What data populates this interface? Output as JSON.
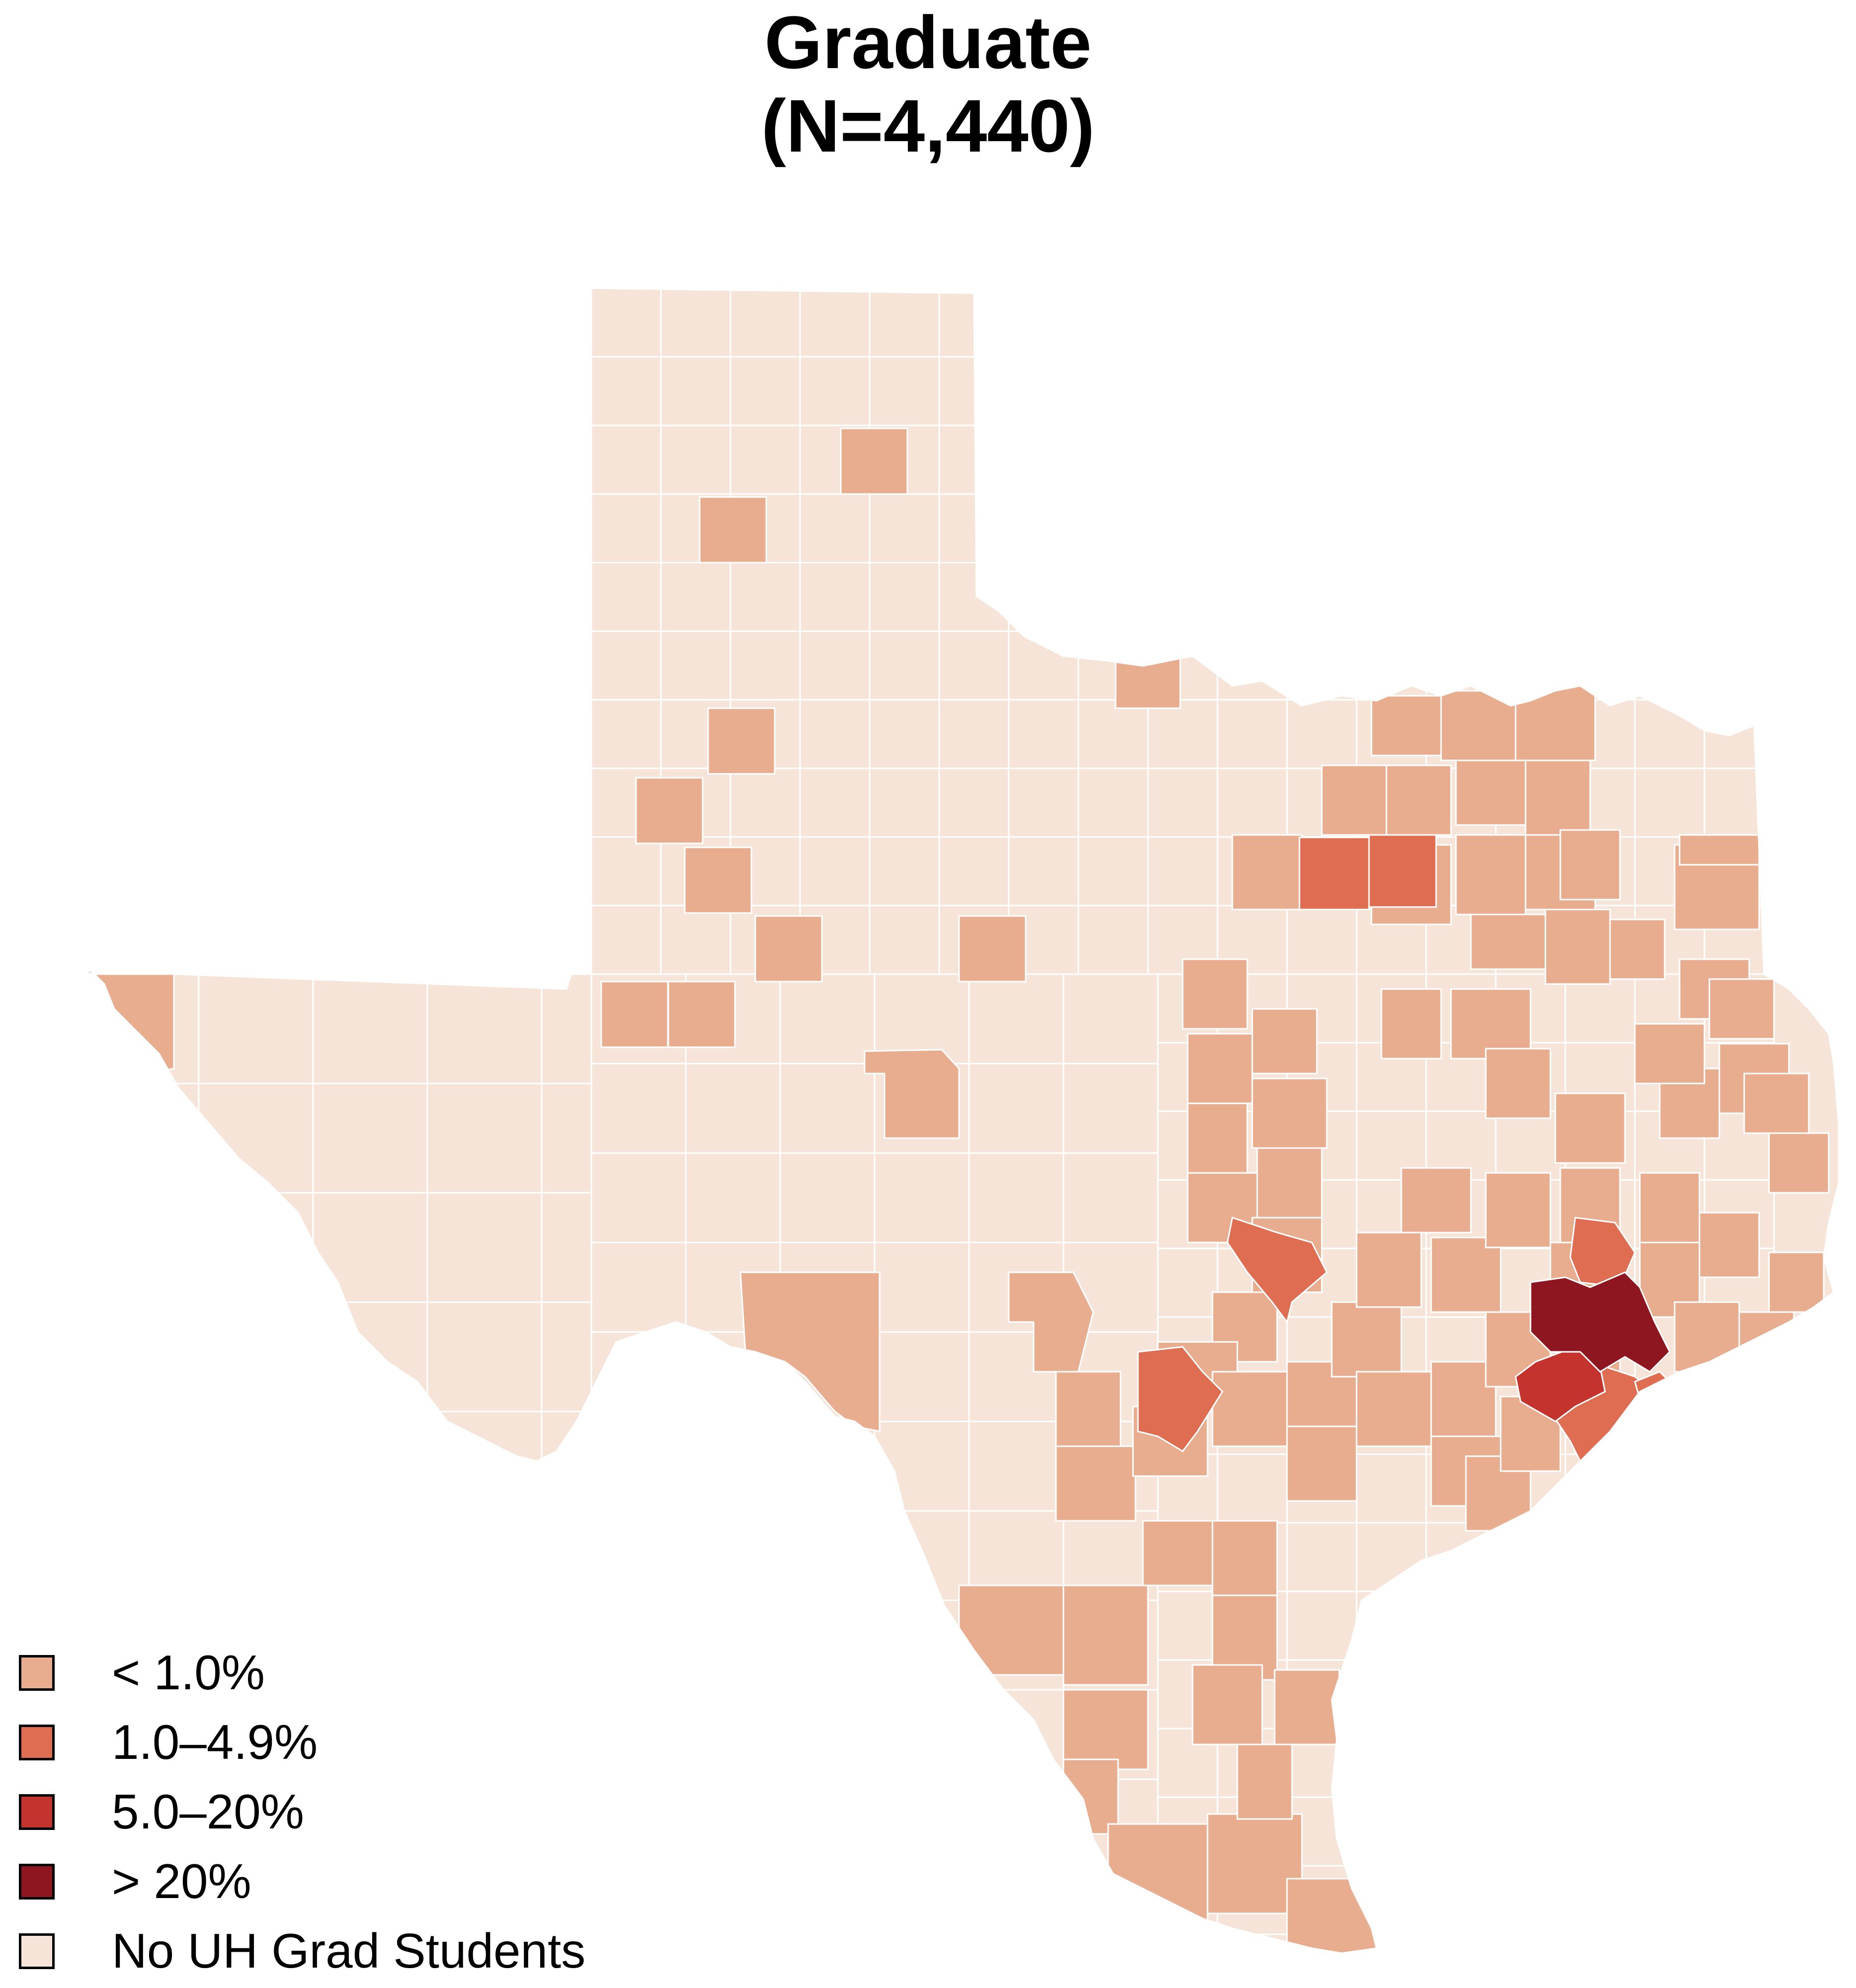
{
  "title": {
    "line1": "Graduate",
    "line2": "(N=4,440)"
  },
  "colors": {
    "none": "#f6e4d9",
    "lt1": "#e8ad8f",
    "p1_4_9": "#de6d52",
    "p5_20": "#c4332d",
    "gt20": "#8e1620",
    "border": "#ffffff",
    "outline": "#000000"
  },
  "legend": [
    {
      "key": "lt1",
      "label": "< 1.0%",
      "color": "#e8ad8f"
    },
    {
      "key": "p1_4_9",
      "label": "1.0–4.9%",
      "color": "#de6d52"
    },
    {
      "key": "p5_20",
      "label": "5.0–20%",
      "color": "#c4332d"
    },
    {
      "key": "gt20",
      "label": "> 20%",
      "color": "#8e1620"
    },
    {
      "key": "none",
      "label": "No UH Grad Students",
      "color": "#f6e4d9"
    }
  ]
}
